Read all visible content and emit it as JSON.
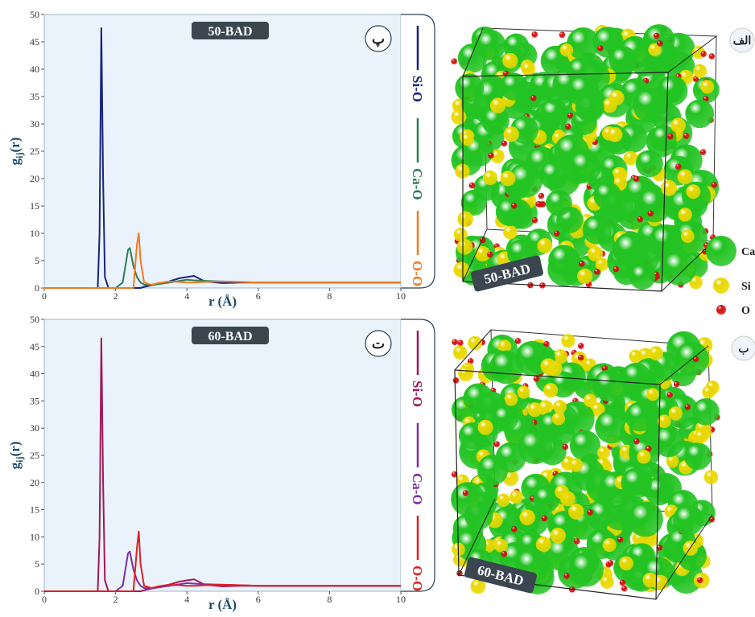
{
  "chart_data": [
    {
      "type": "line",
      "title": "50-BAD",
      "panel_label": "پ",
      "x_label": "r (Å)",
      "y_label": {
        "base": "g",
        "sub": "ij",
        "rest": "(r)"
      },
      "xlim": [
        0,
        10
      ],
      "xticks": [
        0,
        2,
        4,
        6,
        8,
        10
      ],
      "ylim": [
        0,
        50
      ],
      "yticks": [
        0,
        5,
        10,
        15,
        20,
        25,
        30,
        35,
        40,
        45,
        50
      ],
      "legend": "right",
      "x": [
        0,
        1.4,
        1.5,
        1.55,
        1.6,
        1.65,
        1.7,
        1.8,
        2.0,
        2.2,
        2.3,
        2.35,
        2.4,
        2.5,
        2.6,
        2.65,
        2.7,
        2.8,
        3.0,
        3.2,
        3.5,
        3.8,
        4.0,
        4.2,
        4.5,
        5.0,
        5.5,
        6,
        7,
        8,
        9,
        10
      ],
      "series": [
        {
          "name": "Si-O",
          "color": "#1a237e",
          "values": [
            0,
            0,
            0,
            10,
            47.5,
            20,
            2,
            0,
            0,
            0,
            0,
            0,
            0,
            0,
            0,
            0,
            0,
            0.2,
            0.5,
            0.8,
            1.2,
            1.8,
            2,
            2.2,
            1.2,
            0.9,
            1,
            1,
            1,
            1,
            1,
            1
          ]
        },
        {
          "name": "Ca-O",
          "color": "#2e7d57",
          "values": [
            0,
            0,
            0,
            0,
            0,
            0,
            0,
            0,
            0,
            1,
            5,
            7,
            7.3,
            4,
            2,
            1.5,
            1,
            0.6,
            0.5,
            0.7,
            1,
            1.3,
            1.5,
            1.4,
            1.3,
            1.2,
            1.1,
            1,
            1,
            1,
            1,
            1
          ]
        },
        {
          "name": "O-O",
          "color": "#f07a20",
          "values": [
            0,
            0,
            0,
            0,
            0,
            0,
            0,
            0,
            0,
            0,
            0,
            0,
            0,
            0,
            8,
            10,
            5,
            1,
            0.6,
            0.9,
            1.2,
            1.1,
            1,
            1,
            1.1,
            1.2,
            1.1,
            1,
            1,
            1,
            1,
            1
          ]
        }
      ]
    },
    {
      "type": "line",
      "title": "60-BAD",
      "panel_label": "ت",
      "x_label": "r (Å)",
      "y_label": {
        "base": "g",
        "sub": "ij",
        "rest": "(r)"
      },
      "xlim": [
        0,
        10
      ],
      "xticks": [
        0,
        2,
        4,
        6,
        8,
        10
      ],
      "ylim": [
        0,
        50
      ],
      "yticks": [
        0,
        5,
        10,
        15,
        20,
        25,
        30,
        35,
        40,
        45,
        50
      ],
      "legend": "right",
      "x": [
        0,
        1.4,
        1.5,
        1.55,
        1.6,
        1.65,
        1.7,
        1.8,
        2.0,
        2.2,
        2.3,
        2.35,
        2.4,
        2.5,
        2.6,
        2.65,
        2.7,
        2.8,
        3.0,
        3.2,
        3.5,
        3.8,
        4.0,
        4.2,
        4.5,
        5.0,
        5.5,
        6,
        7,
        8,
        9,
        10
      ],
      "series": [
        {
          "name": "Si-O",
          "color": "#a0185a",
          "values": [
            0,
            0,
            0,
            10,
            46.5,
            20,
            2,
            0,
            0,
            0,
            0,
            0,
            0,
            0,
            0,
            0,
            0,
            0.2,
            0.5,
            0.8,
            1.2,
            1.8,
            2,
            2.2,
            1.2,
            0.9,
            1,
            1,
            1,
            1,
            1,
            1
          ]
        },
        {
          "name": "Ca-O",
          "color": "#7b2fa8",
          "values": [
            0,
            0,
            0,
            0,
            0,
            0,
            0,
            0,
            0,
            1,
            5,
            7,
            7.3,
            4,
            2,
            1.5,
            1,
            0.6,
            0.5,
            0.7,
            1,
            1.3,
            1.5,
            1.4,
            1.3,
            1.2,
            1.1,
            1,
            1,
            1,
            1,
            1
          ]
        },
        {
          "name": "O-O",
          "color": "#e02020",
          "values": [
            0,
            0,
            0,
            0,
            0,
            0,
            0,
            0,
            0,
            0,
            0,
            0,
            0,
            0,
            8,
            11,
            5,
            1,
            0.6,
            0.9,
            1.2,
            1.1,
            1,
            1,
            1.1,
            1.2,
            1.1,
            1,
            1,
            1,
            1,
            1
          ]
        }
      ]
    }
  ],
  "images": [
    {
      "label": "الف",
      "tag": "50-BAD"
    },
    {
      "label": "ب",
      "tag": "60-BAD"
    }
  ],
  "atom_legend": [
    {
      "name": "Ca",
      "color": "#22c322"
    },
    {
      "name": "Si",
      "color": "#e8d800"
    },
    {
      "name": "O",
      "color": "#d01010"
    }
  ]
}
